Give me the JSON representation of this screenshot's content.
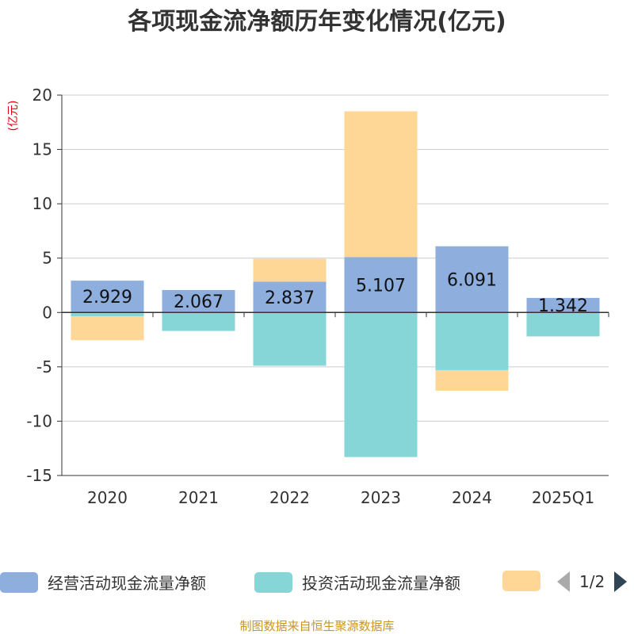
{
  "chart_data": {
    "type": "bar",
    "stacked": true,
    "title": "各项现金流净额历年变化情况(亿元)",
    "ylabel": "(亿元)",
    "xlabel": "",
    "ylim": [
      -15,
      20
    ],
    "yticks": [
      20,
      15,
      10,
      5,
      0,
      -5,
      -10,
      -15
    ],
    "categories": [
      "2020",
      "2021",
      "2022",
      "2023",
      "2024",
      "2025Q1"
    ],
    "series": [
      {
        "name": "经营活动现金流量净额",
        "color": "#8eaede",
        "values": [
          2.929,
          2.067,
          2.837,
          5.107,
          6.091,
          1.342
        ],
        "labels": [
          "2.929",
          "2.067",
          "2.837",
          "5.107",
          "6.091",
          "1.342"
        ]
      },
      {
        "name": "投资活动现金流量净额",
        "color": "#86d6d8",
        "values": [
          -0.35,
          -1.7,
          -4.9,
          -13.3,
          -5.3,
          -2.2
        ]
      },
      {
        "name": "",
        "color": "#fed797",
        "values": [
          -2.2,
          0,
          2.1,
          13.4,
          -1.9,
          0
        ]
      }
    ],
    "grid": true,
    "legend_position": "bottom"
  },
  "legend": {
    "pager": "1/2"
  },
  "footer": {
    "source": "制图数据来自恒生聚源数据库"
  },
  "colors": {
    "axis": "#333333",
    "grid": "#cccccc",
    "ylabel": "#e0000f",
    "footer": "#c8961e",
    "pager_inactive": "#aaaaaa",
    "pager_active": "#2f4554"
  }
}
